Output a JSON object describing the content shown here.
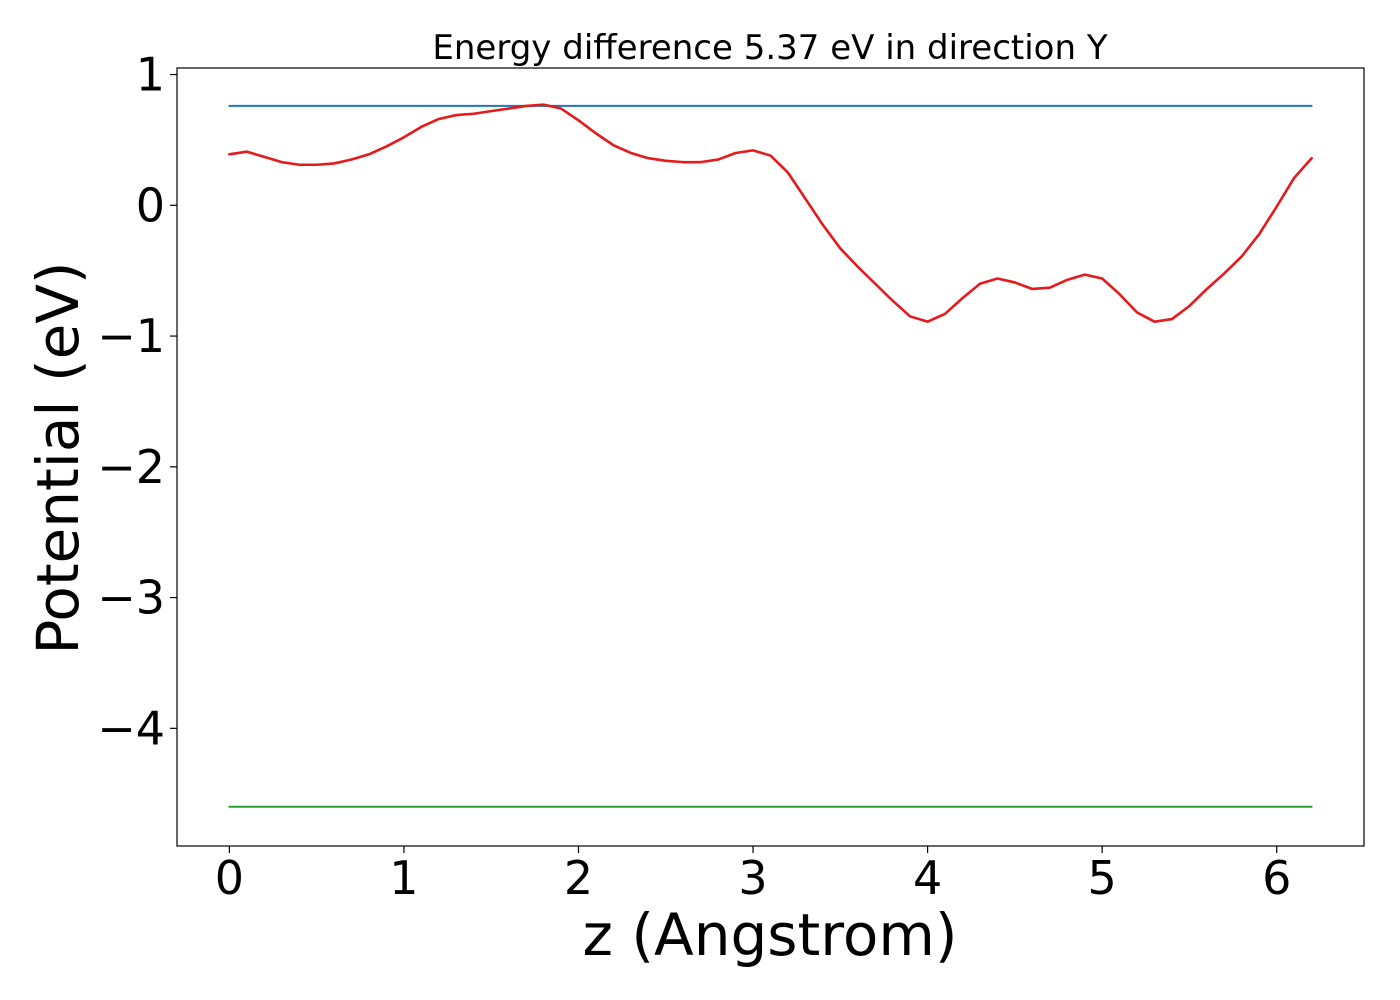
{
  "chart_data": {
    "type": "line",
    "title": "Energy difference 5.37 eV in direction Y",
    "xlabel": "z (Angstrom)",
    "ylabel": "Potential (eV)",
    "xlim": [
      -0.3,
      6.5
    ],
    "ylim": [
      -4.9,
      1.05
    ],
    "xticks": [
      0,
      1,
      2,
      3,
      4,
      5,
      6
    ],
    "xtick_labels": [
      "0",
      "1",
      "2",
      "3",
      "4",
      "5",
      "6"
    ],
    "yticks": [
      1,
      0,
      -1,
      -2,
      -3,
      -4
    ],
    "ytick_labels": [
      "1",
      "0",
      "−1",
      "−2",
      "−3",
      "−4"
    ],
    "grid": false,
    "legend": "none",
    "series": [
      {
        "color": "#1f77b4",
        "x": [
          0,
          6.2
        ],
        "y": [
          0.76,
          0.76
        ]
      },
      {
        "color": "#2ca02c",
        "x": [
          0,
          6.2
        ],
        "y": [
          -4.6,
          -4.6
        ]
      },
      {
        "color": "#e41a1c",
        "x": [
          0,
          0.1,
          0.2,
          0.3,
          0.4,
          0.5,
          0.6,
          0.7,
          0.8,
          0.9,
          1.0,
          1.1,
          1.2,
          1.3,
          1.4,
          1.5,
          1.6,
          1.7,
          1.8,
          1.9,
          2.0,
          2.1,
          2.2,
          2.3,
          2.4,
          2.5,
          2.6,
          2.7,
          2.8,
          2.9,
          3.0,
          3.1,
          3.2,
          3.3,
          3.4,
          3.5,
          3.6,
          3.7,
          3.8,
          3.9,
          4.0,
          4.1,
          4.2,
          4.3,
          4.4,
          4.5,
          4.6,
          4.7,
          4.8,
          4.9,
          5.0,
          5.1,
          5.2,
          5.3,
          5.4,
          5.5,
          5.6,
          5.7,
          5.8,
          5.9,
          6.0,
          6.1,
          6.2
        ],
        "y": [
          0.39,
          0.41,
          0.37,
          0.33,
          0.31,
          0.31,
          0.32,
          0.35,
          0.39,
          0.45,
          0.52,
          0.6,
          0.66,
          0.69,
          0.7,
          0.72,
          0.74,
          0.76,
          0.77,
          0.74,
          0.65,
          0.55,
          0.46,
          0.4,
          0.36,
          0.34,
          0.33,
          0.33,
          0.35,
          0.4,
          0.42,
          0.38,
          0.25,
          0.05,
          -0.15,
          -0.33,
          -0.47,
          -0.6,
          -0.73,
          -0.85,
          -0.89,
          -0.83,
          -0.71,
          -0.6,
          -0.56,
          -0.59,
          -0.64,
          -0.63,
          -0.57,
          -0.53,
          -0.56,
          -0.68,
          -0.82,
          -0.89,
          -0.87,
          -0.77,
          -0.64,
          -0.52,
          -0.39,
          -0.22,
          -0.01,
          0.21,
          0.36
        ]
      }
    ]
  }
}
